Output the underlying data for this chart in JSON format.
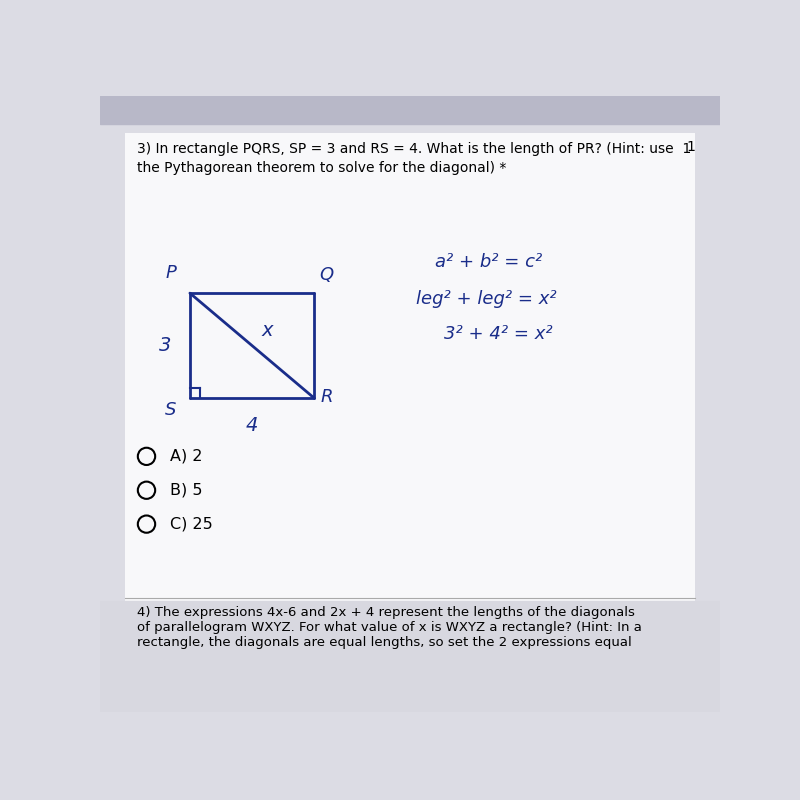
{
  "bg_color": "#dcdce4",
  "content_bg": "#f0f0f4",
  "question_line1": "3) In rectangle PQRS, SP = 3 and RS = 4. What is the length of PR? (Hint: use  1",
  "question_line2": "the Pythagorean theorem to solve for the diagonal) *",
  "rect_color": "#1a2d8a",
  "label_P": "P",
  "label_Q": "Q",
  "label_R": "R",
  "label_S": "S",
  "label_3": "3",
  "label_4": "4",
  "label_x": "x",
  "formula_color": "#1a2d8a",
  "formula_line1": "a² + b² = c²",
  "formula_line2": "leg² + leg² = x²",
  "formula_line3": "3² + 4² = x²",
  "choices": [
    "A) 2",
    "B) 5",
    "C) 25"
  ],
  "bottom_text_line1": "4) The expressions 4x-6 and 2x + 4 represent the lengths of the diagonals",
  "bottom_text_line2": "of parallelogram WXYZ. For what value of x is WXYZ a rectangle? (Hint: In a",
  "bottom_text_line3": "rectangle, the diagonals are equal lengths, so set the 2 expressions equal"
}
